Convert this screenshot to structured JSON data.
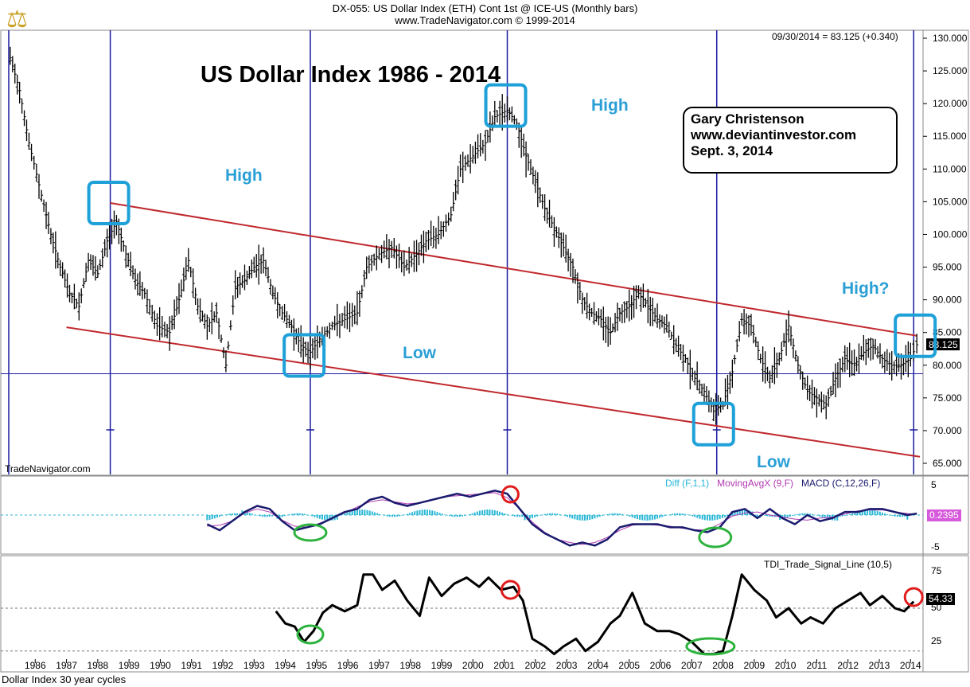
{
  "header": {
    "line1": "DX-055:  US Dollar Index (ETH) Cont 1st @ ICE-US  (Monthly bars)",
    "line2": "www.TradeNavigator.com © 1999-2014",
    "last_value_text": "09/30/2014 = 83.125 (+0.340)"
  },
  "main_title": "US Dollar Index 1986 - 2014",
  "credit": {
    "line1": "Gary Christenson",
    "line2": "www.deviantinvestor.com",
    "line3": "Sept. 3, 2014"
  },
  "annotations": {
    "high_1989": "High",
    "high_2001": "High",
    "low_1995": "Low",
    "low_2008": "Low",
    "high_2014": "High?"
  },
  "watermark": "TradeNavigator.com",
  "footer": "Dollar Index 30 year cycles",
  "colors": {
    "price": "#000000",
    "cycle_lines": "#1a1aa0",
    "channel": "#c0282d",
    "boxes": "#1ea0d8",
    "macd": "#1a1a6e",
    "moving_avg": "#b03ab0",
    "diff": "#2ab7d6",
    "red_circle": "#e01c1c",
    "green_ellipse": "#2db33d"
  },
  "chart_data": [
    {
      "type": "ohlc",
      "y_axis_ticks": [
        "130.000",
        "125.000",
        "120.000",
        "115.000",
        "110.000",
        "105.000",
        "100.000",
        "95.000",
        "90.000",
        "85.000",
        "80.000",
        "75.000",
        "70.000",
        "65.000"
      ],
      "ylim": [
        65,
        130
      ],
      "x_tick_labels": [
        "1986",
        "1987",
        "1988",
        "1989",
        "1990",
        "1991",
        "1992",
        "1993",
        "1994",
        "1995",
        "1996",
        "1997",
        "1998",
        "1999",
        "2000",
        "2001",
        "2002",
        "2003",
        "2004",
        "2005",
        "2006",
        "2007",
        "2008",
        "2009",
        "2010",
        "2011",
        "2012",
        "2013",
        "2014"
      ],
      "xlim": [
        1985.5,
        2014.9
      ],
      "last_value_label": "83.125",
      "horizontal_line": 78.7,
      "cycle_years": [
        1988.9,
        1995.3,
        2001.6,
        2008.3,
        2014.6
      ],
      "channel": {
        "upper": [
          [
            1988.9,
            104.8
          ],
          [
            2014.7,
            84.5
          ]
        ],
        "lower": [
          [
            1987.5,
            85.8
          ],
          [
            2014.8,
            66.0
          ]
        ]
      },
      "series": [
        {
          "x": [
            1985.7,
            1986.0,
            1986.3,
            1986.7,
            1987.0,
            1987.3,
            1987.6,
            1987.9,
            1988.2,
            1988.5,
            1988.8,
            1989.1,
            1989.4,
            1989.7,
            1990.0,
            1990.4,
            1990.8,
            1991.1,
            1991.4,
            1991.7,
            1992.0,
            1992.3,
            1992.6,
            1992.9,
            1993.2,
            1993.5,
            1993.8,
            1994.1,
            1994.4,
            1994.7,
            1995.0,
            1995.3,
            1995.6,
            1996.0,
            1996.4,
            1996.8,
            1997.1,
            1997.5,
            1997.9,
            1998.3,
            1998.7,
            1999.0,
            1999.4,
            1999.8,
            2000.1,
            2000.5,
            2000.9,
            2001.2,
            2001.6,
            2001.9,
            2002.2,
            2002.5,
            2002.8,
            2003.1,
            2003.4,
            2003.7,
            2004.0,
            2004.3,
            2004.6,
            2004.9,
            2005.2,
            2005.5,
            2005.8,
            2006.1,
            2006.4,
            2006.7,
            2007.0,
            2007.3,
            2007.6,
            2007.9,
            2008.2,
            2008.5,
            2008.8,
            2009.1,
            2009.4,
            2009.7,
            2010.0,
            2010.3,
            2010.6,
            2010.9,
            2011.2,
            2011.5,
            2011.8,
            2012.1,
            2012.4,
            2012.7,
            2013.0,
            2013.3,
            2013.6,
            2013.9,
            2014.2,
            2014.5,
            2014.7
          ],
          "y": [
            127,
            122,
            114,
            106,
            100,
            95,
            91,
            89,
            96,
            94,
            99,
            102,
            97,
            93,
            91,
            86,
            85,
            90,
            96,
            89,
            86,
            88,
            80,
            92,
            93,
            95,
            96,
            91,
            88,
            86,
            83,
            82,
            84,
            86,
            87,
            88,
            95,
            97,
            98,
            95,
            97,
            99,
            100,
            103,
            110,
            112,
            114,
            118,
            119,
            117,
            112,
            108,
            104,
            101,
            98,
            95,
            90,
            88,
            87,
            85,
            88,
            89,
            91,
            89,
            87,
            86,
            83,
            81,
            78,
            76,
            73,
            74,
            79,
            87,
            86,
            81,
            78,
            81,
            86,
            80,
            76,
            75,
            74,
            78,
            81,
            80,
            82,
            83,
            81,
            80,
            80,
            81,
            83.125
          ]
        }
      ]
    },
    {
      "type": "line",
      "title": "Diff (F,1,1)  MovingAvgX (9,F)  MACD (C,12,26,F)",
      "y_axis_ticks": [
        "5",
        "-5"
      ],
      "ylim": [
        -6,
        6
      ],
      "last_value_label": "0.2395",
      "series": [
        {
          "name": "MACD (C,12,26,F)",
          "x": [
            1992.0,
            1992.4,
            1992.8,
            1993.2,
            1993.6,
            1994.0,
            1994.4,
            1994.8,
            1995.2,
            1995.6,
            1996.0,
            1996.4,
            1996.8,
            1997.2,
            1997.6,
            1998.0,
            1998.4,
            1998.8,
            1999.2,
            1999.6,
            2000.0,
            2000.4,
            2000.8,
            2001.2,
            2001.6,
            2002.0,
            2002.4,
            2002.8,
            2003.2,
            2003.6,
            2004.0,
            2004.4,
            2004.8,
            2005.2,
            2005.6,
            2006.0,
            2006.4,
            2006.8,
            2007.2,
            2007.6,
            2008.0,
            2008.4,
            2008.8,
            2009.2,
            2009.6,
            2010.0,
            2010.4,
            2010.8,
            2011.2,
            2011.6,
            2012.0,
            2012.4,
            2012.8,
            2013.2,
            2013.6,
            2014.0,
            2014.4,
            2014.7
          ],
          "y": [
            -1.5,
            -2.5,
            -1.0,
            0.5,
            1.5,
            1.0,
            -1.0,
            -2.5,
            -2.0,
            -1.5,
            -0.5,
            0.5,
            1.0,
            2.5,
            3.0,
            2.0,
            1.5,
            2.0,
            2.5,
            3.0,
            3.5,
            3.0,
            3.5,
            4.0,
            3.5,
            1.0,
            -1.5,
            -3.0,
            -4.0,
            -5.0,
            -4.5,
            -5.0,
            -4.0,
            -2.0,
            -1.5,
            -1.5,
            -1.5,
            -2.0,
            -2.0,
            -2.5,
            -2.8,
            -2.0,
            0.5,
            1.0,
            -0.5,
            1.0,
            -0.5,
            -1.5,
            0.0,
            -1.0,
            -0.5,
            0.5,
            0.5,
            1.0,
            1.0,
            0.5,
            0.0,
            0.24
          ]
        }
      ]
    },
    {
      "type": "line",
      "title": "TDI_Trade_Signal_Line (10,5)",
      "y_axis_ticks": [
        "75",
        "25"
      ],
      "ylim": [
        15,
        85
      ],
      "last_value_label": "54.33",
      "series": [
        {
          "name": "TDI_Trade_Signal_Line (10,5)",
          "x": [
            1994.2,
            1994.5,
            1994.8,
            1995.1,
            1995.4,
            1995.7,
            1996.0,
            1996.4,
            1996.8,
            1997.0,
            1997.3,
            1997.6,
            1998.0,
            1998.4,
            1998.8,
            1999.1,
            1999.5,
            1999.9,
            2000.3,
            2000.7,
            2001.0,
            2001.4,
            2001.8,
            2002.1,
            2002.4,
            2002.8,
            2003.1,
            2003.4,
            2003.8,
            2004.1,
            2004.5,
            2004.9,
            2005.2,
            2005.6,
            2006.0,
            2006.4,
            2006.8,
            2007.1,
            2007.5,
            2007.9,
            2008.2,
            2008.5,
            2008.8,
            2009.1,
            2009.5,
            2009.9,
            2010.2,
            2010.6,
            2011.0,
            2011.3,
            2011.7,
            2012.1,
            2012.5,
            2012.9,
            2013.2,
            2013.6,
            2014.0,
            2014.3,
            2014.6
          ],
          "y": [
            48,
            40,
            38,
            28,
            35,
            47,
            52,
            48,
            52,
            72,
            72,
            62,
            68,
            55,
            45,
            70,
            58,
            66,
            70,
            64,
            70,
            62,
            64,
            55,
            30,
            25,
            20,
            25,
            30,
            22,
            28,
            40,
            45,
            60,
            40,
            35,
            35,
            33,
            28,
            20,
            20,
            22,
            45,
            72,
            62,
            55,
            44,
            50,
            40,
            44,
            40,
            50,
            55,
            60,
            52,
            58,
            50,
            48,
            54.33
          ]
        }
      ]
    }
  ],
  "footer_panel": {
    "macd_legend_diff": "Diff (F,1,1)",
    "macd_legend_mavg": "MovingAvgX (9,F)",
    "macd_legend_macd": "MACD (C,12,26,F)",
    "macd_tick_top": "5",
    "macd_tick_bottom": "-5",
    "macd_value": "0.2395",
    "tdi_title": "TDI_Trade_Signal_Line (10,5)",
    "tdi_tick_75": "75",
    "tdi_tick_50": "50",
    "tdi_tick_25": "25",
    "tdi_value": "54.33"
  }
}
